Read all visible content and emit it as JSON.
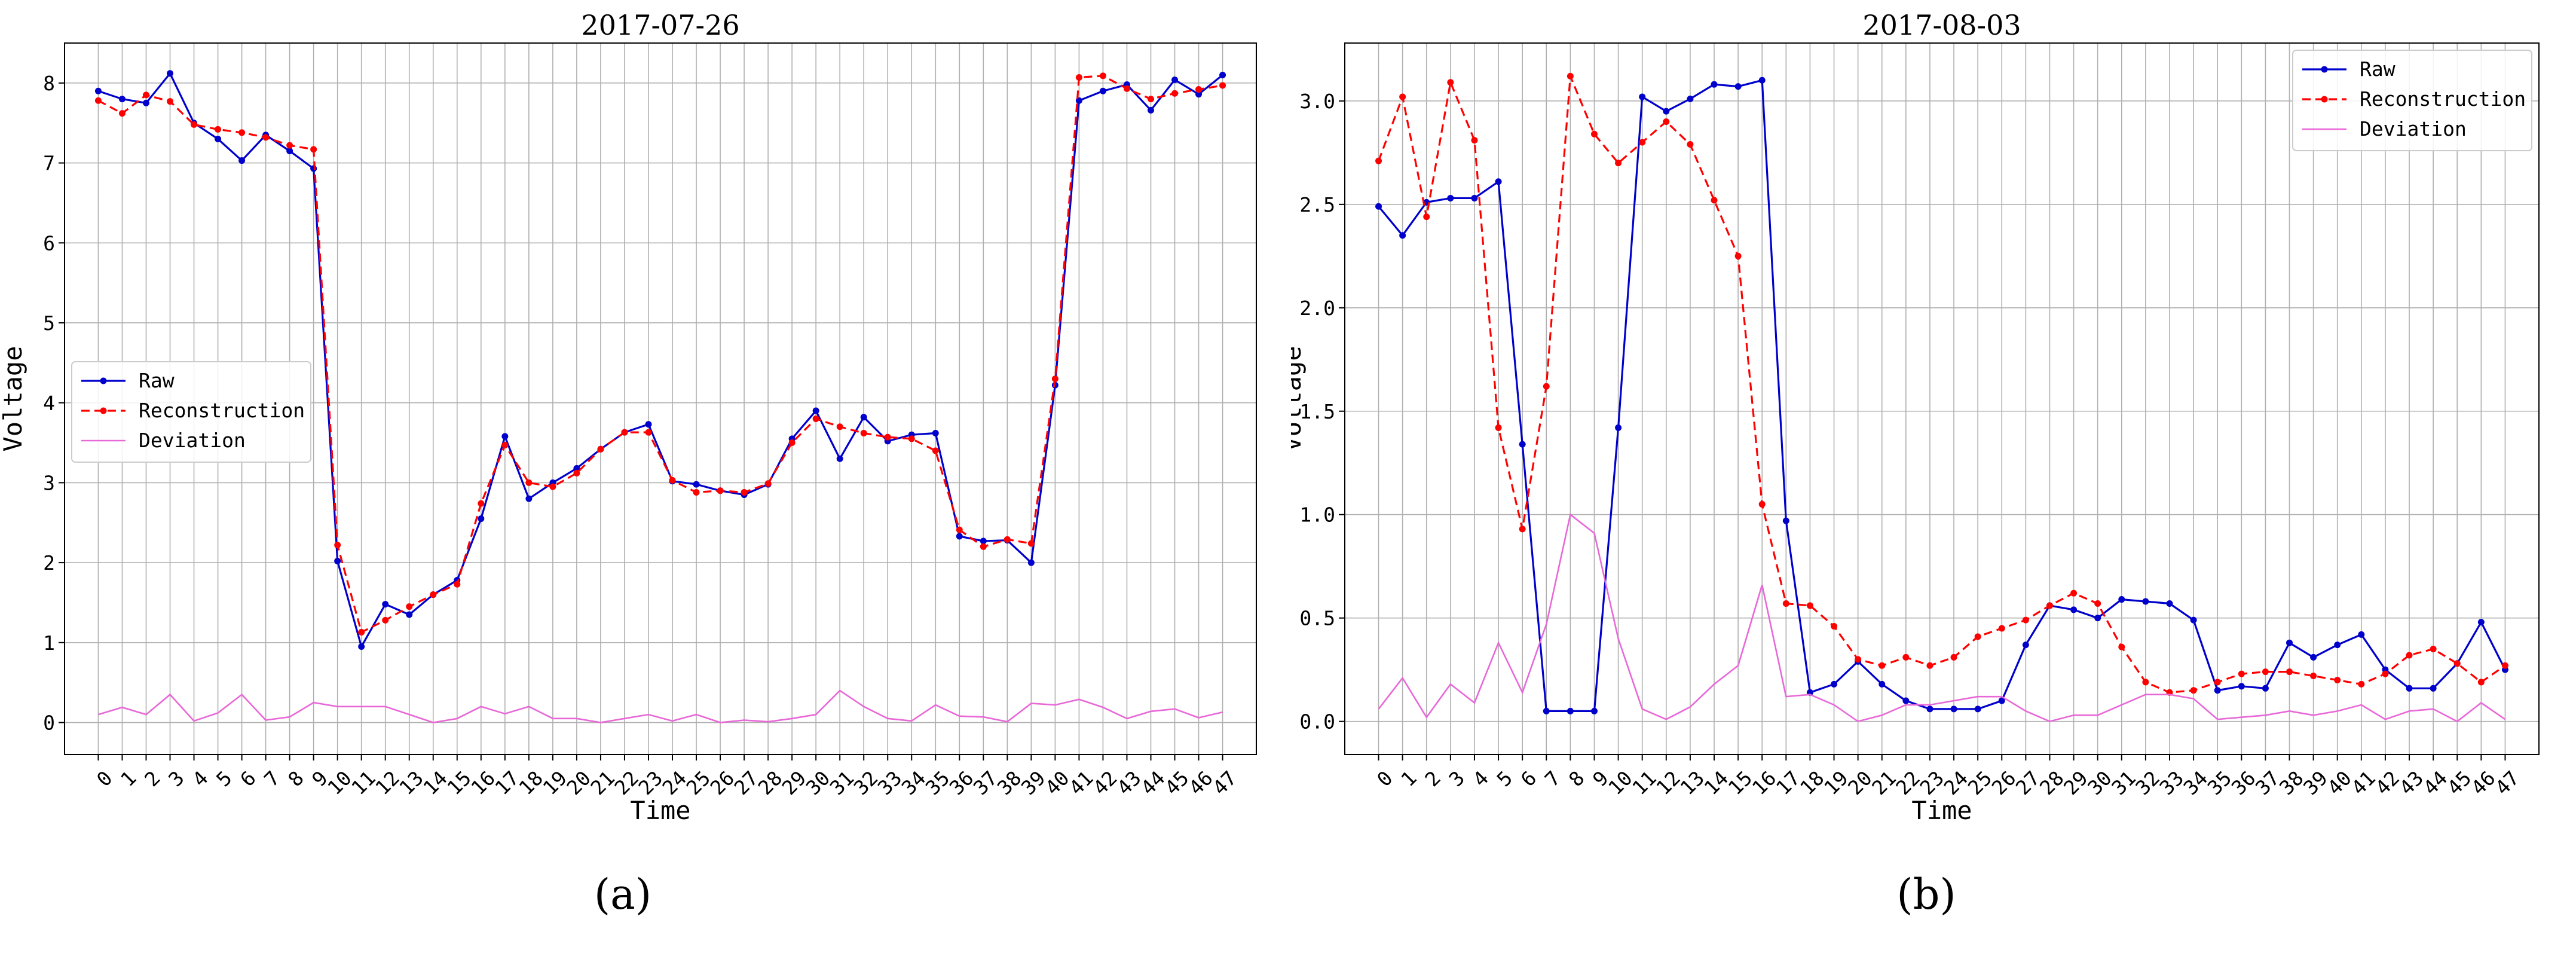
{
  "captions": [
    "(a)",
    "(b)"
  ],
  "chart_data": [
    {
      "type": "line",
      "title": "2017-07-26",
      "xlabel": "Time",
      "ylabel": "Voltage",
      "x": [
        0,
        1,
        2,
        3,
        4,
        5,
        6,
        7,
        8,
        9,
        10,
        11,
        12,
        13,
        14,
        15,
        16,
        17,
        18,
        19,
        20,
        21,
        22,
        23,
        24,
        25,
        26,
        27,
        28,
        29,
        30,
        31,
        32,
        33,
        34,
        35,
        36,
        37,
        38,
        39,
        40,
        41,
        42,
        43,
        44,
        45,
        46,
        47
      ],
      "ylim": [
        -0.4,
        8.5
      ],
      "yticks": [
        0,
        1,
        2,
        3,
        4,
        5,
        6,
        7,
        8
      ],
      "grid": true,
      "legend_position": "center-left",
      "series": [
        {
          "name": "Raw",
          "color": "#0000cc",
          "style": "solid-marker",
          "values": [
            7.9,
            7.8,
            7.75,
            8.12,
            7.5,
            7.3,
            7.03,
            7.35,
            7.15,
            6.93,
            2.02,
            0.95,
            1.48,
            1.35,
            1.6,
            1.78,
            2.55,
            3.58,
            2.8,
            3.0,
            3.18,
            3.42,
            3.63,
            3.73,
            3.02,
            2.98,
            2.9,
            2.85,
            2.98,
            3.55,
            3.9,
            3.3,
            3.82,
            3.52,
            3.6,
            3.62,
            2.33,
            2.27,
            2.28,
            2.0,
            4.22,
            7.78,
            7.9,
            7.98,
            7.66,
            8.04,
            7.86,
            8.1
          ]
        },
        {
          "name": "Reconstruction",
          "color": "#ff0000",
          "style": "dashed-marker",
          "values": [
            7.78,
            7.62,
            7.85,
            7.77,
            7.48,
            7.42,
            7.38,
            7.32,
            7.22,
            7.17,
            2.22,
            1.13,
            1.28,
            1.45,
            1.6,
            1.73,
            2.74,
            3.47,
            3.0,
            2.95,
            3.12,
            3.42,
            3.63,
            3.63,
            3.03,
            2.88,
            2.9,
            2.88,
            2.99,
            3.5,
            3.8,
            3.7,
            3.62,
            3.57,
            3.55,
            3.4,
            2.41,
            2.2,
            2.29,
            2.24,
            4.3,
            8.07,
            8.09,
            7.93,
            7.8,
            7.87,
            7.92,
            7.97
          ]
        },
        {
          "name": "Deviation",
          "color": "#e868d8",
          "style": "solid",
          "values": [
            0.1,
            0.19,
            0.1,
            0.35,
            0.02,
            0.12,
            0.35,
            0.03,
            0.07,
            0.25,
            0.2,
            0.2,
            0.2,
            0.1,
            0.0,
            0.05,
            0.2,
            0.11,
            0.2,
            0.05,
            0.05,
            0.0,
            0.05,
            0.1,
            0.02,
            0.1,
            0.0,
            0.03,
            0.01,
            0.05,
            0.1,
            0.4,
            0.2,
            0.05,
            0.02,
            0.22,
            0.08,
            0.07,
            0.01,
            0.24,
            0.22,
            0.29,
            0.19,
            0.05,
            0.14,
            0.17,
            0.06,
            0.13
          ]
        }
      ]
    },
    {
      "type": "line",
      "title": "2017-08-03",
      "xlabel": "Time",
      "ylabel": "Voltage",
      "x": [
        0,
        1,
        2,
        3,
        4,
        5,
        6,
        7,
        8,
        9,
        10,
        11,
        12,
        13,
        14,
        15,
        16,
        17,
        18,
        19,
        20,
        21,
        22,
        23,
        24,
        25,
        26,
        27,
        28,
        29,
        30,
        31,
        32,
        33,
        34,
        35,
        36,
        37,
        38,
        39,
        40,
        41,
        42,
        43,
        44,
        45,
        46,
        47
      ],
      "ylim": [
        -0.16,
        3.28
      ],
      "yticks": [
        0.0,
        0.5,
        1.0,
        1.5,
        2.0,
        2.5,
        3.0
      ],
      "ytick_labels": [
        "0.0",
        "0.5",
        "1.0",
        "1.5",
        "2.0",
        "2.5",
        "3.0"
      ],
      "grid": true,
      "legend_position": "top-right",
      "series": [
        {
          "name": "Raw",
          "color": "#0000cc",
          "style": "solid-marker",
          "values": [
            2.49,
            2.35,
            2.51,
            2.53,
            2.53,
            2.61,
            1.34,
            0.05,
            0.05,
            0.05,
            1.42,
            3.02,
            2.95,
            3.01,
            3.08,
            3.07,
            3.1,
            0.97,
            0.14,
            0.18,
            0.29,
            0.18,
            0.1,
            0.06,
            0.06,
            0.06,
            0.1,
            0.37,
            0.56,
            0.54,
            0.5,
            0.59,
            0.58,
            0.57,
            0.49,
            0.15,
            0.17,
            0.16,
            0.38,
            0.31,
            0.37,
            0.42,
            0.25,
            0.16,
            0.16,
            0.28,
            0.48,
            0.25
          ]
        },
        {
          "name": "Reconstruction",
          "color": "#ff0000",
          "style": "dashed-marker",
          "values": [
            2.71,
            3.02,
            2.44,
            3.09,
            2.81,
            1.42,
            0.93,
            1.62,
            3.12,
            2.84,
            2.7,
            2.8,
            2.9,
            2.79,
            2.52,
            2.25,
            1.05,
            0.57,
            0.56,
            0.46,
            0.3,
            0.27,
            0.31,
            0.27,
            0.31,
            0.41,
            0.45,
            0.49,
            0.56,
            0.62,
            0.57,
            0.36,
            0.19,
            0.14,
            0.15,
            0.19,
            0.23,
            0.24,
            0.24,
            0.22,
            0.2,
            0.18,
            0.23,
            0.32,
            0.35,
            0.28,
            0.19,
            0.27
          ]
        },
        {
          "name": "Deviation",
          "color": "#e868d8",
          "style": "solid",
          "values": [
            0.06,
            0.21,
            0.02,
            0.18,
            0.09,
            0.38,
            0.14,
            0.47,
            1.0,
            0.91,
            0.4,
            0.06,
            0.01,
            0.07,
            0.18,
            0.27,
            0.66,
            0.12,
            0.13,
            0.08,
            0.0,
            0.03,
            0.08,
            0.08,
            0.1,
            0.12,
            0.12,
            0.05,
            0.0,
            0.03,
            0.03,
            0.08,
            0.13,
            0.13,
            0.11,
            0.01,
            0.02,
            0.03,
            0.05,
            0.03,
            0.05,
            0.08,
            0.01,
            0.05,
            0.06,
            0.0,
            0.09,
            0.01
          ]
        }
      ]
    }
  ]
}
